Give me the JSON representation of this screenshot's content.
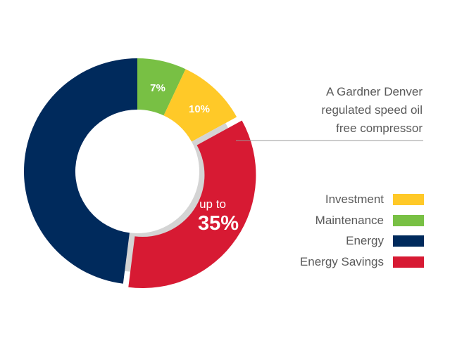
{
  "chart_data": {
    "type": "pie",
    "categories": [
      "Maintenance",
      "Investment",
      "Energy Savings",
      "Energy"
    ],
    "values": [
      7,
      10,
      35,
      48
    ],
    "data_labels": [
      "7%",
      "10%",
      "",
      ""
    ],
    "savings_label": {
      "prefix": "up to",
      "value": "35%"
    },
    "annotation": [
      "A Gardner Denver",
      "regulated speed oil",
      "free compressor"
    ],
    "colors": {
      "Investment": "#ffc928",
      "Maintenance": "#78c044",
      "Energy": "#002a5c",
      "Energy Savings": "#d71a33",
      "gap": "#d4d4d4"
    },
    "legend": [
      {
        "label": "Investment",
        "color": "#ffc928"
      },
      {
        "label": "Maintenance",
        "color": "#78c044"
      },
      {
        "label": "Energy",
        "color": "#002a5c"
      },
      {
        "label": "Energy Savings",
        "color": "#d71a33"
      }
    ]
  }
}
